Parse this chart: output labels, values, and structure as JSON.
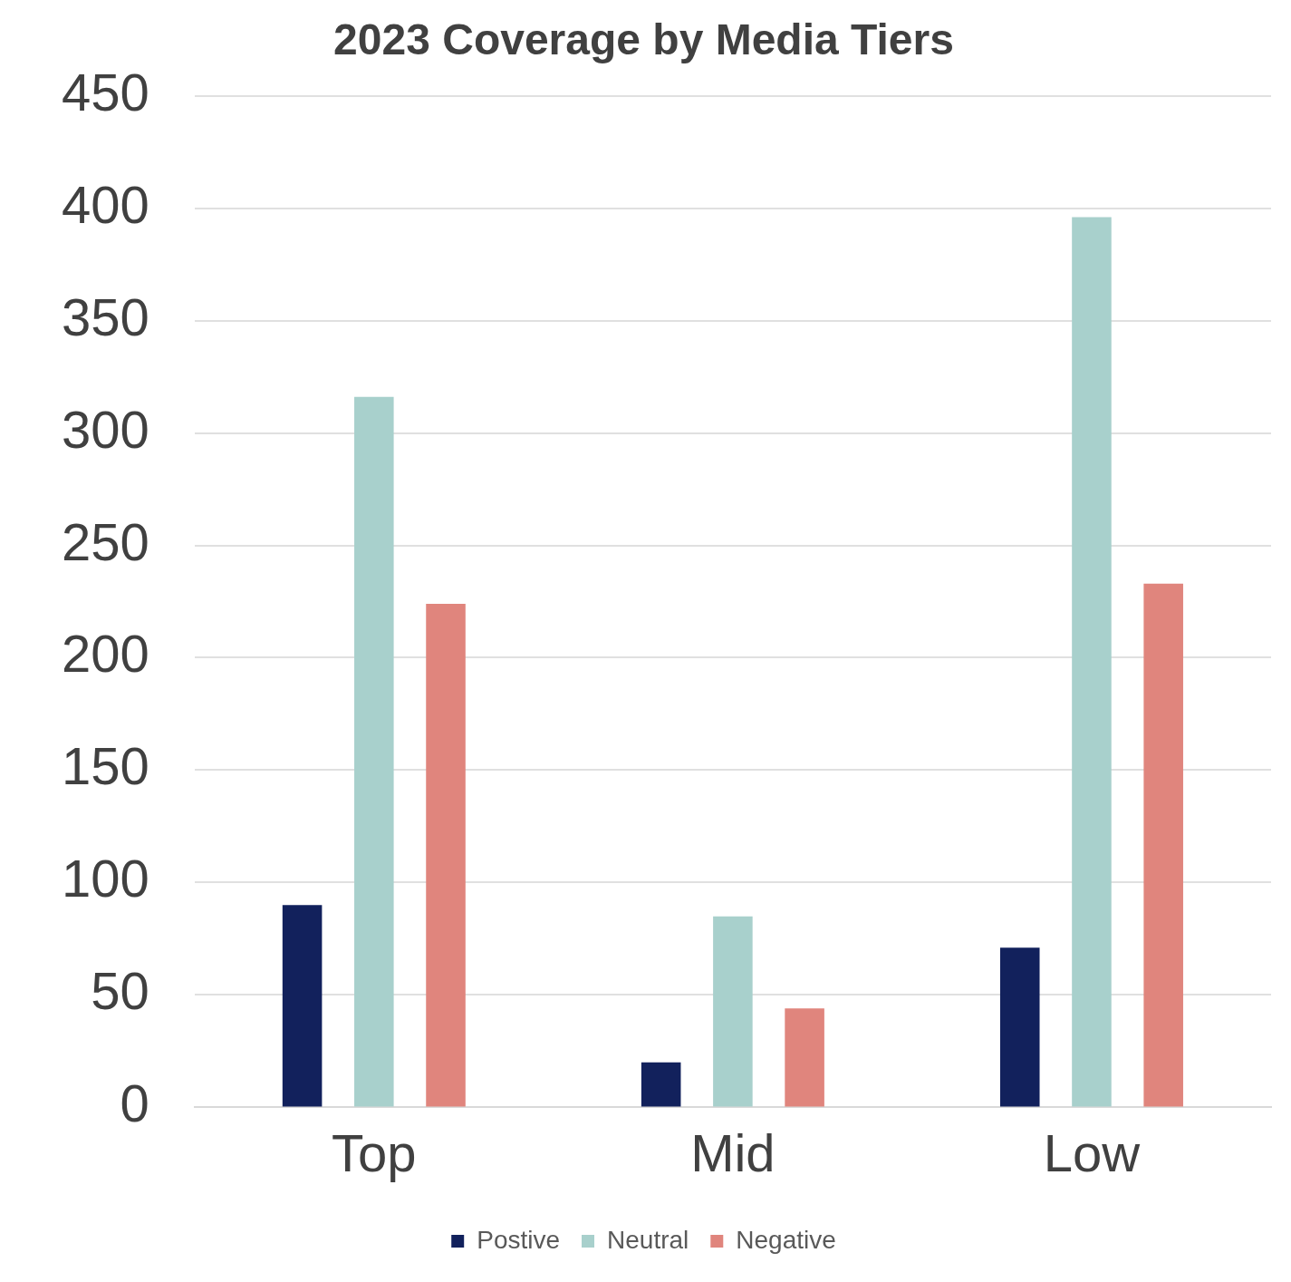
{
  "chart_data": {
    "type": "bar",
    "title": "2023 Coverage by Media Tiers",
    "categories": [
      "Top",
      "Mid",
      "Low"
    ],
    "series": [
      {
        "name": "Postive",
        "color": "#12215c",
        "values": [
          90,
          20,
          71
        ]
      },
      {
        "name": "Neutral",
        "color": "#a8d0cc",
        "values": [
          316,
          85,
          396
        ]
      },
      {
        "name": "Negative",
        "color": "#e0857d",
        "values": [
          224,
          44,
          233
        ]
      }
    ],
    "ylim": [
      0,
      450
    ],
    "yticks": [
      0,
      50,
      100,
      150,
      200,
      250,
      300,
      350,
      400,
      450
    ],
    "grid": "y",
    "legend": "bottom"
  }
}
